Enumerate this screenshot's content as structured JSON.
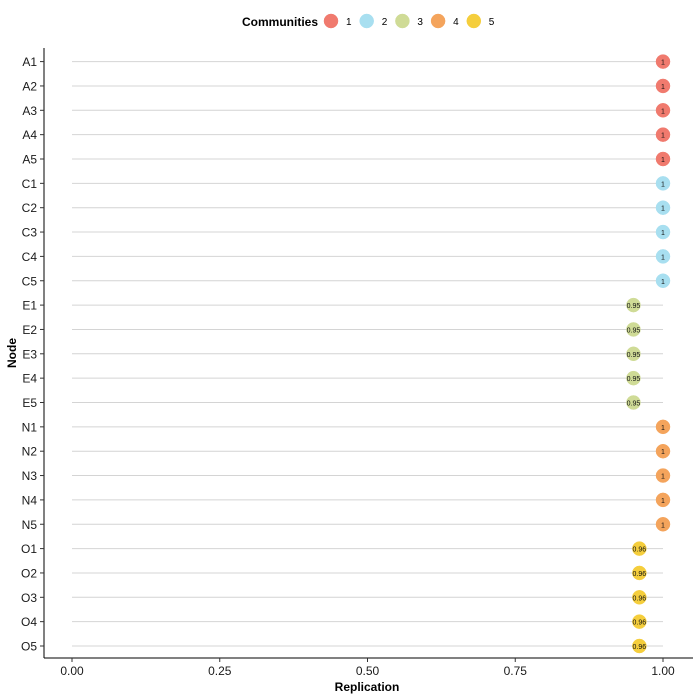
{
  "chart_data": {
    "type": "scatter",
    "xlabel": "Replication",
    "ylabel": "Node",
    "xlim": [
      0,
      1
    ],
    "x_ticks": [
      "0.00",
      "0.25",
      "0.50",
      "0.75",
      "1.00"
    ],
    "grid": "horizontal",
    "legend": {
      "title": "Communities",
      "placement": "top",
      "entries": [
        {
          "label": "1",
          "color": "#F07A6E"
        },
        {
          "label": "2",
          "color": "#A8DFF0"
        },
        {
          "label": "3",
          "color": "#CFDB96"
        },
        {
          "label": "4",
          "color": "#F4A45C"
        },
        {
          "label": "5",
          "color": "#F5CE3C"
        }
      ]
    },
    "points": [
      {
        "node": "A1",
        "community": "1",
        "value": 1,
        "label": "1"
      },
      {
        "node": "A2",
        "community": "1",
        "value": 1,
        "label": "1"
      },
      {
        "node": "A3",
        "community": "1",
        "value": 1,
        "label": "1"
      },
      {
        "node": "A4",
        "community": "1",
        "value": 1,
        "label": "1"
      },
      {
        "node": "A5",
        "community": "1",
        "value": 1,
        "label": "1"
      },
      {
        "node": "C1",
        "community": "2",
        "value": 1,
        "label": "1"
      },
      {
        "node": "C2",
        "community": "2",
        "value": 1,
        "label": "1"
      },
      {
        "node": "C3",
        "community": "2",
        "value": 1,
        "label": "1"
      },
      {
        "node": "C4",
        "community": "2",
        "value": 1,
        "label": "1"
      },
      {
        "node": "C5",
        "community": "2",
        "value": 1,
        "label": "1"
      },
      {
        "node": "E1",
        "community": "3",
        "value": 0.95,
        "label": "0.95"
      },
      {
        "node": "E2",
        "community": "3",
        "value": 0.95,
        "label": "0.95"
      },
      {
        "node": "E3",
        "community": "3",
        "value": 0.95,
        "label": "0.95"
      },
      {
        "node": "E4",
        "community": "3",
        "value": 0.95,
        "label": "0.95"
      },
      {
        "node": "E5",
        "community": "3",
        "value": 0.95,
        "label": "0.95"
      },
      {
        "node": "N1",
        "community": "4",
        "value": 1,
        "label": "1"
      },
      {
        "node": "N2",
        "community": "4",
        "value": 1,
        "label": "1"
      },
      {
        "node": "N3",
        "community": "4",
        "value": 1,
        "label": "1"
      },
      {
        "node": "N4",
        "community": "4",
        "value": 1,
        "label": "1"
      },
      {
        "node": "N5",
        "community": "4",
        "value": 1,
        "label": "1"
      },
      {
        "node": "O1",
        "community": "5",
        "value": 0.96,
        "label": "0.96"
      },
      {
        "node": "O2",
        "community": "5",
        "value": 0.96,
        "label": "0.96"
      },
      {
        "node": "O3",
        "community": "5",
        "value": 0.96,
        "label": "0.96"
      },
      {
        "node": "O4",
        "community": "5",
        "value": 0.96,
        "label": "0.96"
      },
      {
        "node": "O5",
        "community": "5",
        "value": 0.96,
        "label": "0.96"
      }
    ]
  }
}
